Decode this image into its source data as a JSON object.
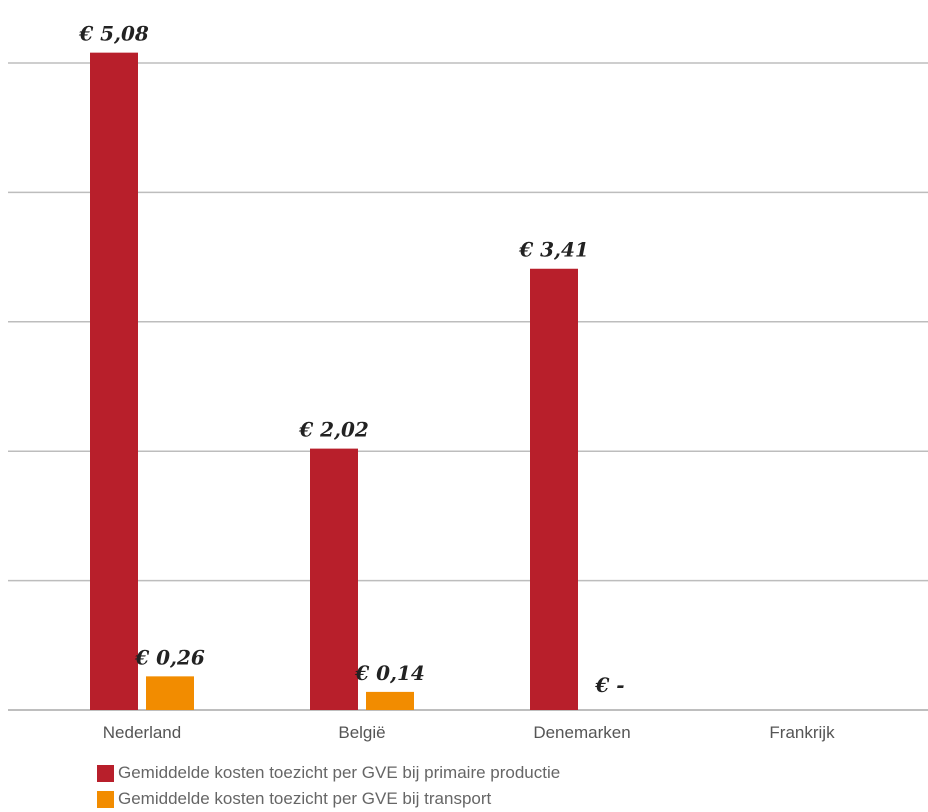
{
  "chart_data": {
    "type": "bar",
    "categories": [
      "Nederland",
      "België",
      "Denemarken",
      "Frankrijk"
    ],
    "series": [
      {
        "name": "Gemiddelde kosten toezicht per GVE bij primaire productie",
        "color": "#b81f2b",
        "values": [
          5.08,
          2.02,
          3.41,
          null
        ],
        "labels": [
          "€ 5,08",
          "€ 2,02",
          "€ 3,41",
          ""
        ]
      },
      {
        "name": "Gemiddelde kosten toezicht per GVE bij transport",
        "color": "#f28c00",
        "values": [
          0.26,
          0.14,
          0,
          null
        ],
        "labels": [
          "€ 0,26",
          "€ 0,14",
          "€ -",
          ""
        ]
      }
    ],
    "ylim": [
      0,
      5
    ],
    "grid": true,
    "legend_position": "bottom-left"
  }
}
